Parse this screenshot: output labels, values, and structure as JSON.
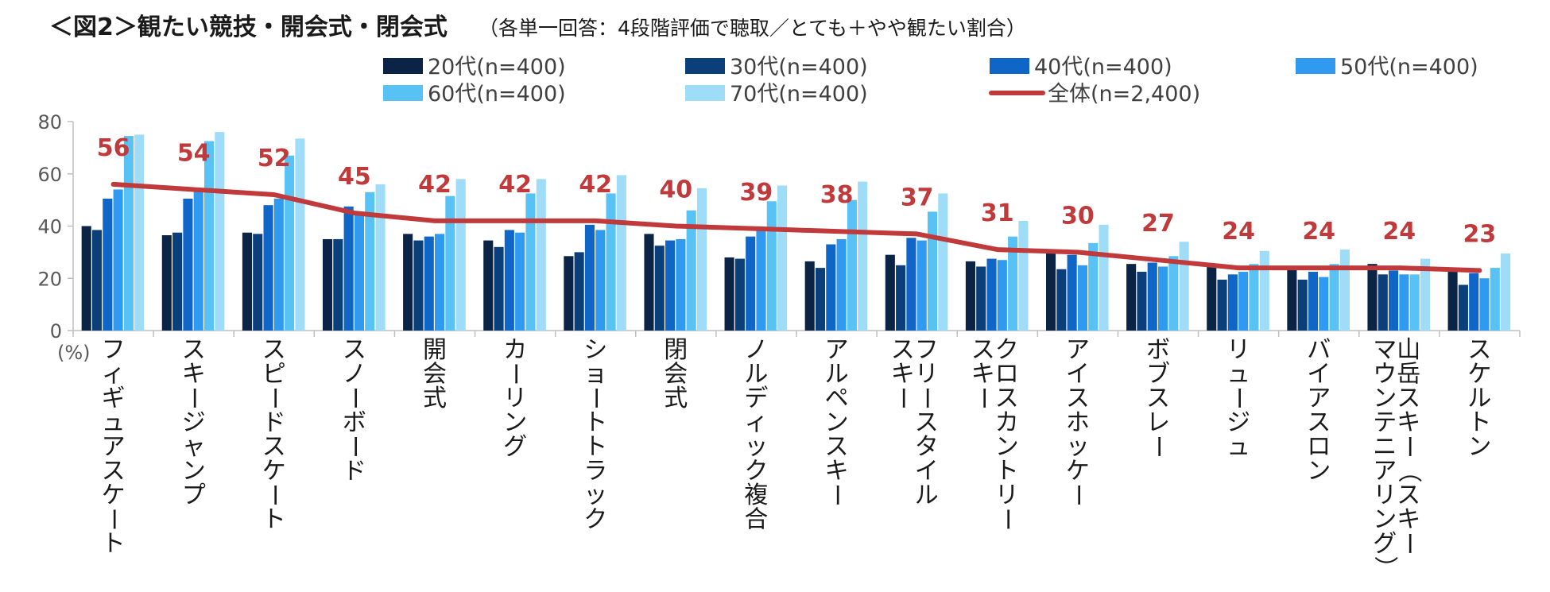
{
  "title": {
    "main": "＜図2＞観たい競技・開会式・閉会式",
    "sub": "（各単一回答：4段階評価で聴取／とても＋やや観たい割合）"
  },
  "colors": {
    "series": [
      "#0b2445",
      "#0a3f7a",
      "#0f66c7",
      "#2f9af0",
      "#59c2f5",
      "#9fdcf8"
    ],
    "line": "#c0393b",
    "axis": "#bfbfbf"
  },
  "chart_data": {
    "type": "bar",
    "title": "＜図2＞観たい競技・開会式・閉会式",
    "subtitle": "（各単一回答：4段階評価で聴取／とても＋やや観たい割合）",
    "unit_label": "(%)",
    "ylim": [
      0,
      80
    ],
    "yticks": [
      0,
      20,
      40,
      60,
      80
    ],
    "grid": false,
    "legend_position": "top",
    "categories": [
      [
        "フィギュアスケート"
      ],
      [
        "スキージャンプ"
      ],
      [
        "スピードスケート"
      ],
      [
        "スノーボード"
      ],
      [
        "開会式"
      ],
      [
        "カーリング"
      ],
      [
        "ショートトラック"
      ],
      [
        "閉会式"
      ],
      [
        "ノルディック複合"
      ],
      [
        "アルペンスキー"
      ],
      [
        "フリースタイル",
        "スキー"
      ],
      [
        "クロスカントリー",
        "スキー"
      ],
      [
        "アイスホッケー"
      ],
      [
        "ボブスレー"
      ],
      [
        "リュージュ"
      ],
      [
        "バイアスロン"
      ],
      [
        "山岳スキー（スキー",
        "マウンテニアリング）"
      ],
      [
        "スケルトン"
      ]
    ],
    "series": [
      {
        "name": "20代(n=400)",
        "values": [
          40,
          36.5,
          37.5,
          35,
          37,
          34.5,
          28.5,
          37,
          28,
          26.5,
          29,
          26.5,
          30,
          25.5,
          25,
          24,
          25.5,
          22.5
        ]
      },
      {
        "name": "30代(n=400)",
        "values": [
          38.5,
          37.5,
          37,
          35,
          34.5,
          32,
          30,
          32.5,
          27.5,
          24,
          25,
          24.5,
          23.5,
          22.5,
          19.5,
          19.5,
          21.5,
          17.5
        ]
      },
      {
        "name": "40代(n=400)",
        "values": [
          50.5,
          50.5,
          48,
          47.5,
          36,
          38.5,
          40.5,
          34.5,
          36,
          33,
          35.5,
          27.5,
          29,
          26,
          21.5,
          22.5,
          23,
          22
        ]
      },
      {
        "name": "50代(n=400)",
        "values": [
          54,
          53.5,
          50.5,
          45.5,
          37,
          37.5,
          38.5,
          35,
          38.5,
          35,
          34.5,
          27,
          25,
          24.5,
          22.5,
          20.5,
          21.5,
          20
        ]
      },
      {
        "name": "60代(n=400)",
        "values": [
          74.5,
          72.5,
          67,
          53,
          51.5,
          52.5,
          52.5,
          46,
          49.5,
          50,
          45.5,
          36,
          33.5,
          28.5,
          25.5,
          25.5,
          21.5,
          24
        ]
      },
      {
        "name": "70代(n=400)",
        "values": [
          75,
          76,
          73.5,
          56,
          58,
          58,
          59.5,
          54.5,
          55.5,
          57,
          52.5,
          42,
          40.5,
          34,
          30.5,
          31,
          27.5,
          29.5
        ]
      }
    ],
    "total_line": {
      "name": "全体(n=2,400)",
      "values": [
        56,
        54,
        52,
        45,
        42,
        42,
        42,
        40,
        39,
        38,
        37,
        31,
        30,
        27,
        24,
        24,
        24,
        23
      ]
    }
  }
}
